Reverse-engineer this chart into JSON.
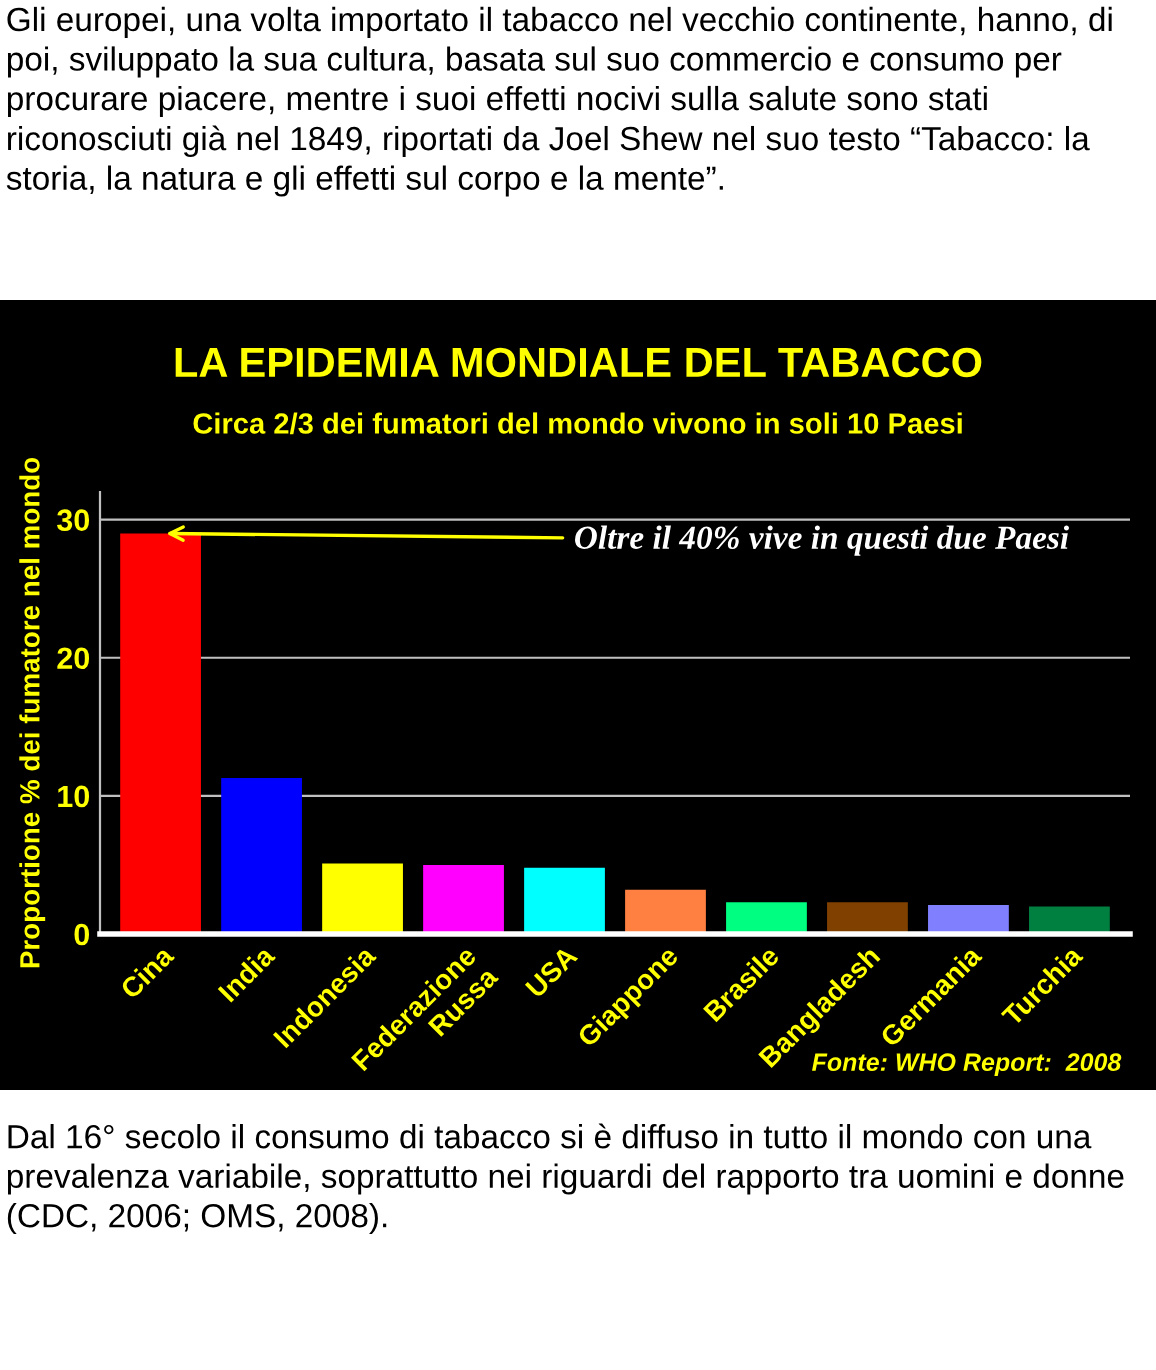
{
  "chart_data": {
    "type": "bar",
    "title": "LA EPIDEMIA MONDIALE DEL TABACCO",
    "subtitle": "Circa 2/3 dei fumatori del mondo vivono in soli 10 Paesi",
    "ylabel": "Proportione % dei fumatore nel mondo",
    "categories": [
      "Cina",
      "India",
      "Indonesia",
      "Federazione\nRussa",
      "USA",
      "Giappone",
      "Brasile",
      "Bangladesh",
      "Germania",
      "Turchia"
    ],
    "values": [
      29,
      11.3,
      5.1,
      5.0,
      4.8,
      3.2,
      2.3,
      2.3,
      2.1,
      2.0
    ],
    "colors": [
      "#ff0000",
      "#0000ff",
      "#ffff00",
      "#ff00ff",
      "#00ffff",
      "#ff8040",
      "#00ff80",
      "#804000",
      "#8080ff",
      "#008040"
    ],
    "ylim": [
      0,
      32
    ],
    "yticks": [
      0,
      10,
      20,
      30
    ],
    "grid": "y",
    "annotations": [
      {
        "text": "Oltre il 40% vive in questi due Paesi",
        "x": "Cina",
        "y": 29
      },
      "Fonte: WHO Report:  2008",
      "Gli europei, una volta importato il tabacco nel vecchio continente, hanno, di poi, sviluppato la sua cultura, basata sul suo commercio e consumo per procurare piacere, mentre i suoi effetti nocivi sulla salute sono stati riconosciuti già nel 1849, riportati da Joel Shew nel suo testo “Tabacco: la storia, la natura e gli effetti sul corpo e la mente”.",
      "Dal 16° secolo il consumo di tabacco si è diffuso in tutto il mondo con una prevalenza variabile, soprattutto nei riguardi del rapporto tra uomini e donne (CDC, 2006; OMS, 2008)."
    ]
  }
}
